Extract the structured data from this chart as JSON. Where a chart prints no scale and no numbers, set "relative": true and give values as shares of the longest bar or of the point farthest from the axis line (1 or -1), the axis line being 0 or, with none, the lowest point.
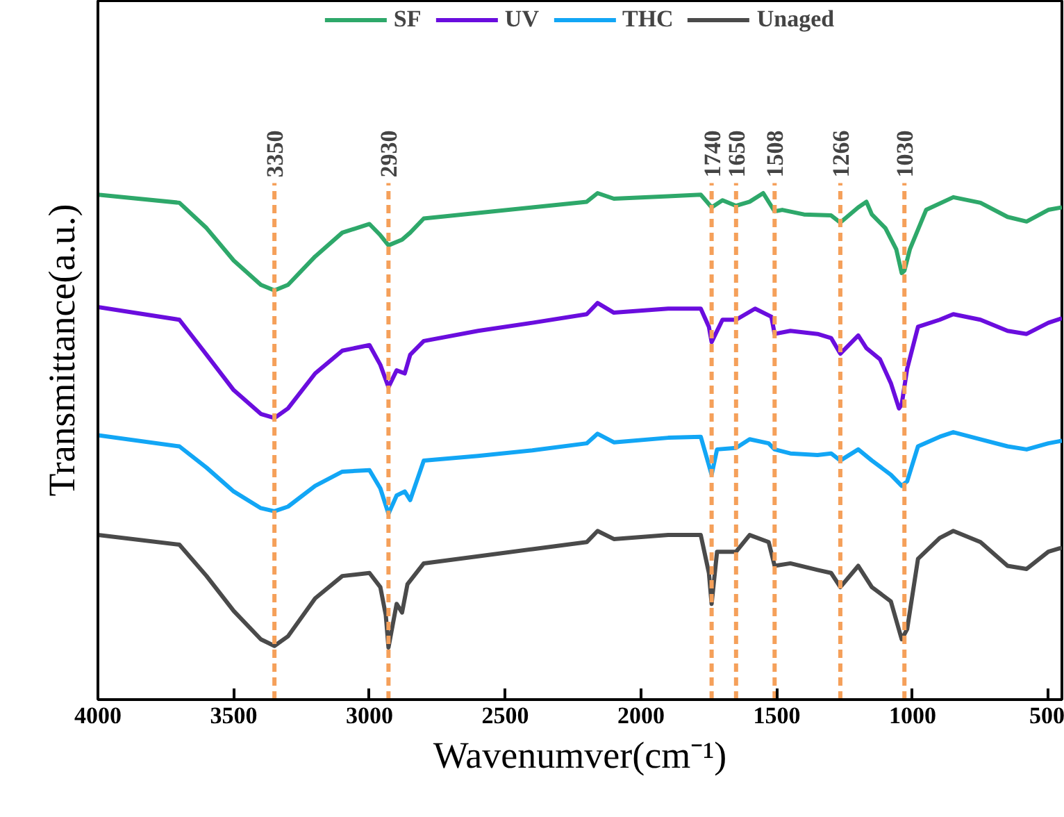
{
  "chart_data": {
    "type": "line",
    "relative": true,
    "xlabel": "Wavenumver(cm⁻¹)",
    "ylabel": "Transmittance(a.u.)",
    "xlim": [
      4000,
      450
    ],
    "xticks": [
      4000,
      3500,
      3000,
      2500,
      2000,
      1500,
      1000,
      500
    ],
    "grid": false,
    "legend": "top",
    "marker": "none",
    "line_style": "solid",
    "series": [
      {
        "name": "SF",
        "color": "#2ea86a",
        "x": [
          4000,
          3700,
          3600,
          3500,
          3400,
          3350,
          3300,
          3200,
          3100,
          3000,
          2960,
          2930,
          2880,
          2850,
          2800,
          2600,
          2400,
          2200,
          2160,
          2100,
          1900,
          1780,
          1740,
          1700,
          1650,
          1600,
          1550,
          1508,
          1480,
          1400,
          1300,
          1266,
          1200,
          1170,
          1150,
          1100,
          1060,
          1040,
          1030,
          1010,
          950,
          850,
          750,
          650,
          580,
          500,
          450
        ],
        "values": [
          0.997,
          0.981,
          0.931,
          0.867,
          0.819,
          0.808,
          0.819,
          0.875,
          0.922,
          0.939,
          0.917,
          0.897,
          0.908,
          0.922,
          0.95,
          0.961,
          0.972,
          0.983,
          1.0,
          0.989,
          0.994,
          0.997,
          0.972,
          0.986,
          0.975,
          0.983,
          1.0,
          0.964,
          0.967,
          0.958,
          0.956,
          0.942,
          0.972,
          0.983,
          0.958,
          0.931,
          0.889,
          0.842,
          0.847,
          0.889,
          0.967,
          0.992,
          0.981,
          0.953,
          0.944,
          0.967,
          0.972
        ]
      },
      {
        "name": "UV",
        "color": "#6a0dde",
        "x": [
          4000,
          3700,
          3600,
          3500,
          3400,
          3350,
          3300,
          3200,
          3100,
          3000,
          2960,
          2930,
          2900,
          2870,
          2850,
          2800,
          2600,
          2400,
          2200,
          2160,
          2100,
          1900,
          1780,
          1750,
          1740,
          1700,
          1650,
          1580,
          1520,
          1508,
          1450,
          1350,
          1300,
          1266,
          1200,
          1170,
          1120,
          1080,
          1050,
          1040,
          1020,
          980,
          900,
          850,
          750,
          650,
          580,
          500,
          450
        ],
        "values": [
          0.775,
          0.75,
          0.681,
          0.611,
          0.564,
          0.556,
          0.575,
          0.644,
          0.689,
          0.7,
          0.661,
          0.617,
          0.65,
          0.644,
          0.681,
          0.708,
          0.728,
          0.744,
          0.761,
          0.783,
          0.764,
          0.772,
          0.772,
          0.736,
          0.706,
          0.75,
          0.75,
          0.772,
          0.756,
          0.722,
          0.728,
          0.722,
          0.714,
          0.683,
          0.719,
          0.694,
          0.672,
          0.625,
          0.575,
          0.583,
          0.653,
          0.736,
          0.75,
          0.761,
          0.75,
          0.728,
          0.722,
          0.744,
          0.753
        ]
      },
      {
        "name": "THC",
        "color": "#12a6f5",
        "x": [
          4000,
          3700,
          3600,
          3500,
          3400,
          3350,
          3300,
          3200,
          3100,
          3000,
          2960,
          2930,
          2900,
          2870,
          2850,
          2800,
          2600,
          2400,
          2200,
          2160,
          2100,
          1900,
          1780,
          1740,
          1720,
          1650,
          1600,
          1530,
          1508,
          1450,
          1350,
          1300,
          1266,
          1200,
          1150,
          1080,
          1040,
          1020,
          980,
          900,
          850,
          750,
          650,
          580,
          500,
          450
        ],
        "values": [
          0.522,
          0.5,
          0.458,
          0.411,
          0.378,
          0.372,
          0.381,
          0.422,
          0.45,
          0.453,
          0.417,
          0.367,
          0.403,
          0.411,
          0.394,
          0.472,
          0.481,
          0.492,
          0.506,
          0.525,
          0.508,
          0.517,
          0.519,
          0.444,
          0.494,
          0.497,
          0.514,
          0.506,
          0.494,
          0.486,
          0.483,
          0.486,
          0.472,
          0.494,
          0.472,
          0.444,
          0.422,
          0.431,
          0.5,
          0.519,
          0.528,
          0.514,
          0.5,
          0.494,
          0.506,
          0.511
        ]
      },
      {
        "name": "Unaged",
        "color": "#4a4a4a",
        "x": [
          4000,
          3700,
          3600,
          3500,
          3400,
          3350,
          3300,
          3200,
          3100,
          3000,
          2960,
          2940,
          2930,
          2900,
          2880,
          2860,
          2800,
          2600,
          2400,
          2200,
          2160,
          2100,
          1900,
          1780,
          1750,
          1740,
          1720,
          1650,
          1600,
          1530,
          1508,
          1450,
          1350,
          1300,
          1266,
          1200,
          1150,
          1080,
          1040,
          1020,
          980,
          900,
          850,
          750,
          650,
          580,
          500,
          450
        ],
        "values": [
          0.325,
          0.306,
          0.244,
          0.175,
          0.119,
          0.106,
          0.125,
          0.2,
          0.244,
          0.25,
          0.222,
          0.167,
          0.103,
          0.189,
          0.172,
          0.228,
          0.269,
          0.283,
          0.297,
          0.311,
          0.333,
          0.317,
          0.325,
          0.325,
          0.25,
          0.189,
          0.292,
          0.292,
          0.325,
          0.311,
          0.264,
          0.269,
          0.256,
          0.25,
          0.222,
          0.264,
          0.222,
          0.194,
          0.119,
          0.139,
          0.278,
          0.319,
          0.333,
          0.311,
          0.264,
          0.258,
          0.292,
          0.3
        ]
      }
    ],
    "ref_lines": [
      {
        "axis": "x",
        "value": 3350,
        "label": "3350",
        "color": "#f5a05a",
        "line_style": "dashed"
      },
      {
        "axis": "x",
        "value": 2930,
        "label": "2930",
        "color": "#f5a05a",
        "line_style": "dashed"
      },
      {
        "axis": "x",
        "value": 1740,
        "label": "1740",
        "color": "#f5a05a",
        "line_style": "dashed"
      },
      {
        "axis": "x",
        "value": 1650,
        "label": "1650",
        "color": "#f5a05a",
        "line_style": "dashed"
      },
      {
        "axis": "x",
        "value": 1508,
        "label": "1508",
        "color": "#f5a05a",
        "line_style": "dashed"
      },
      {
        "axis": "x",
        "value": 1266,
        "label": "1266",
        "color": "#f5a05a",
        "line_style": "dashed"
      },
      {
        "axis": "x",
        "value": 1030,
        "label": "1030",
        "color": "#f5a05a",
        "line_style": "dashed"
      }
    ]
  }
}
